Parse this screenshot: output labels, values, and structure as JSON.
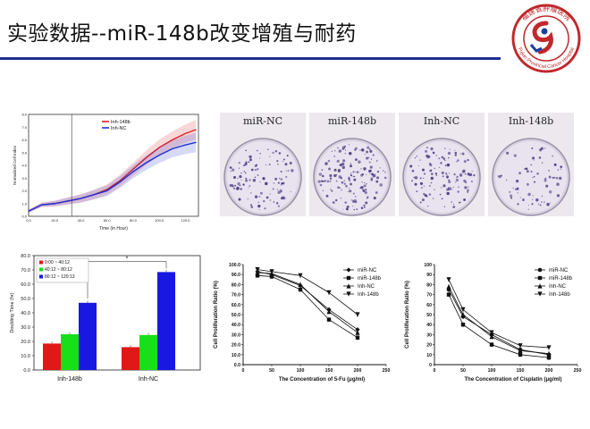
{
  "slide": {
    "title": "实验数据--miR-148b改变增殖与耐药",
    "logo": {
      "text": "福建省肿瘤医院",
      "ring_text": "Fujian Provincial Cancer Hospital",
      "accent": "#c0282b"
    }
  },
  "colony": {
    "labels": [
      "miR-NC",
      "miR-148b",
      "Inh-NC",
      "Inh-148b"
    ]
  },
  "chart_data": [
    {
      "type": "line",
      "xlabel": "Time (in Hour)",
      "ylabel": "Normalized Cell Index",
      "xticks": [
        "0.0",
        "20.0",
        "40.0",
        "60.0",
        "80.0",
        "100.0",
        "120.0"
      ],
      "yticks": [
        "0.0",
        "1.0",
        "2.0",
        "3.0",
        "4.0",
        "5.0",
        "6.0",
        "7.0",
        "8.0"
      ],
      "xlim": [
        0,
        130
      ],
      "ylim": [
        0,
        8
      ],
      "series": [
        {
          "name": "Inh-148b",
          "color": "#e02020",
          "x": [
            0,
            10,
            20,
            30,
            40,
            50,
            60,
            70,
            80,
            90,
            100,
            110,
            120,
            128
          ],
          "y": [
            0.4,
            0.9,
            1.0,
            1.2,
            1.4,
            1.7,
            2.1,
            2.8,
            3.7,
            4.6,
            5.4,
            6.0,
            6.5,
            6.8
          ]
        },
        {
          "name": "Inh-NC",
          "color": "#2030d0",
          "x": [
            0,
            10,
            20,
            30,
            40,
            50,
            60,
            70,
            80,
            90,
            100,
            110,
            120,
            128
          ],
          "y": [
            0.4,
            0.9,
            1.0,
            1.2,
            1.4,
            1.7,
            2.0,
            2.7,
            3.5,
            4.2,
            4.8,
            5.3,
            5.6,
            5.8
          ]
        }
      ]
    },
    {
      "type": "bar",
      "ylabel": "Doubling Time (hr)",
      "categories": [
        "Inh-148b",
        "Inh-NC"
      ],
      "yticks": [
        "0.0",
        "10.0",
        "20.0",
        "30.0",
        "40.0",
        "50.0",
        "60.0",
        "70.0",
        "80.0"
      ],
      "ylim": [
        0,
        80
      ],
      "annotation": "*",
      "series": [
        {
          "name": "0:00 ~ 40:12",
          "color": "#e01818",
          "values": [
            18.5,
            16.0
          ]
        },
        {
          "name": "40:12 ~ 80:12",
          "color": "#18e018",
          "values": [
            25.0,
            24.5
          ]
        },
        {
          "name": "80:12 ~ 120:13",
          "color": "#1818e0",
          "values": [
            47.0,
            68.5
          ]
        }
      ]
    },
    {
      "type": "line",
      "xlabel": "The Concentration of 5-Fu (μg/ml)",
      "ylabel": "Cell Proliferation Ratio (%)",
      "xticks": [
        "0",
        "50",
        "100",
        "150",
        "200",
        "250"
      ],
      "yticks": [
        "0.0",
        "10.0",
        "20.0",
        "30.0",
        "40.0",
        "50.0",
        "60.0",
        "70.0",
        "80.0",
        "90.0",
        "100.0"
      ],
      "xlim": [
        0,
        250
      ],
      "ylim": [
        0,
        100
      ],
      "x": [
        25,
        50,
        100,
        150,
        200
      ],
      "series": [
        {
          "name": "miR-NC",
          "marker": "diamond",
          "values": [
            93,
            90,
            79,
            55,
            35
          ]
        },
        {
          "name": "miR-148b",
          "marker": "square",
          "values": [
            89,
            88,
            75,
            45,
            27
          ]
        },
        {
          "name": "Inh-NC",
          "marker": "triangle-up",
          "values": [
            92,
            91,
            80,
            53,
            32
          ]
        },
        {
          "name": "Inh-148b",
          "marker": "triangle-down",
          "values": [
            95,
            93,
            89,
            72,
            50
          ]
        }
      ]
    },
    {
      "type": "line",
      "xlabel": "The Concentration of Cisplatin (μg/ml)",
      "ylabel": "Cell Proliferation Ratio (%)",
      "xticks": [
        "0",
        "50",
        "100",
        "150",
        "200",
        "250"
      ],
      "yticks": [
        "0",
        "10",
        "20",
        "30",
        "40",
        "50",
        "60",
        "70",
        "80",
        "90",
        "100"
      ],
      "xlim": [
        0,
        250
      ],
      "ylim": [
        0,
        100
      ],
      "x": [
        25,
        50,
        100,
        150,
        200
      ],
      "series": [
        {
          "name": "miR-NC",
          "marker": "circle",
          "values": [
            75,
            48,
            30,
            15,
            10
          ]
        },
        {
          "name": "miR-148b",
          "marker": "square",
          "values": [
            70,
            40,
            20,
            10,
            7
          ]
        },
        {
          "name": "Inh-NC",
          "marker": "triangle-up",
          "values": [
            78,
            50,
            28,
            14,
            11
          ]
        },
        {
          "name": "Inh-148b",
          "marker": "triangle-down",
          "values": [
            85,
            55,
            32,
            19,
            17
          ]
        }
      ]
    }
  ]
}
